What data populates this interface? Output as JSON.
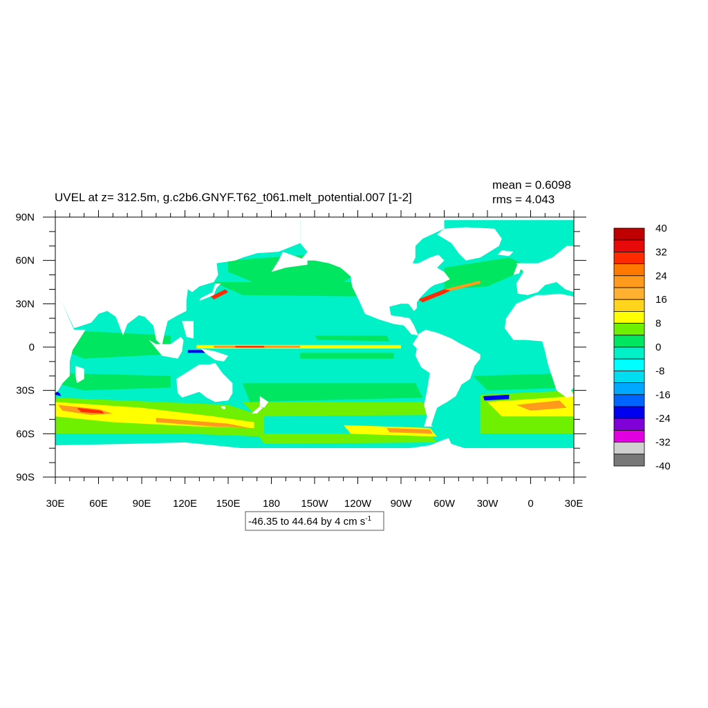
{
  "chart_data": {
    "type": "heatmap",
    "title": "UVEL at z= 312.5m, g.c2b6.GNYF.T62_t061.melt_potential.007 [1-2]",
    "stats": {
      "mean": "mean = 0.6098",
      "rms": "rms = 4.043"
    },
    "x_ticks": [
      "30E",
      "60E",
      "90E",
      "120E",
      "150E",
      "180",
      "150W",
      "120W",
      "90W",
      "60W",
      "30W",
      "0",
      "30E"
    ],
    "y_ticks": [
      "90N",
      "60N",
      "30N",
      "0",
      "30S",
      "60S",
      "90S"
    ],
    "lon_range": [
      30,
      390
    ],
    "lat_range": [
      -90,
      90
    ],
    "contour_info": {
      "text": "-46.35 to 44.64 by 4 cm s",
      "superscript": "-1"
    },
    "colorbar": {
      "colors": [
        "#c00000",
        "#e80a0a",
        "#ff2a00",
        "#ff7800",
        "#ff9a1c",
        "#ffb030",
        "#ffd41c",
        "#ffff00",
        "#6ef000",
        "#00e660",
        "#00f0c8",
        "#00ffff",
        "#00dcf0",
        "#00a8ff",
        "#0064ff",
        "#0000f0",
        "#8000d8",
        "#e000e0",
        "#d0d0d0",
        "#787878"
      ],
      "labels": [
        "40",
        "32",
        "24",
        "16",
        "8",
        "0",
        "-8",
        "-16",
        "-24",
        "-32",
        "-40"
      ]
    },
    "field_colors": {
      "base": "#00f0c8",
      "zero_plus": "#00e660",
      "weak_pos": "#6ef000",
      "pos": "#ffff00",
      "strong_pos": "#ff9a1c",
      "very_strong": "#ff2a00",
      "max": "#c00000",
      "neg": "#00dcf0",
      "strong_neg": "#0000f0",
      "land": "#ffffff"
    }
  }
}
